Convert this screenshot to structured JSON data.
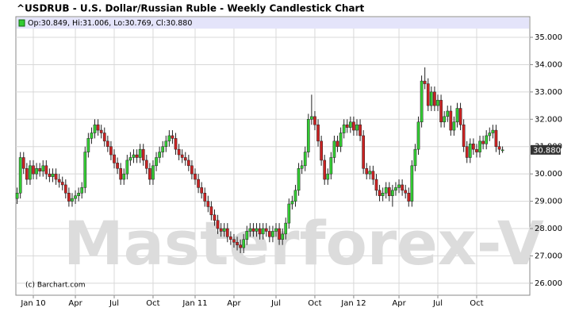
{
  "chart_data": {
    "type": "candlestick",
    "title": "^USDRUB - U.S. Dollar/Russian Ruble - Weekly Candlestick Chart",
    "info": "Op:30.849, Hi:31.006, Lo:30.769, Cl:30.880",
    "last_label": "30.880",
    "watermark": "Masterforex-V",
    "credit": "(c) Barchart.com",
    "up_color": "#33cc33",
    "down_color": "#cc2222",
    "grid": true,
    "ylim": [
      25.56,
      35.32
    ],
    "yticks": [
      {
        "value": 26,
        "label": "26.000"
      },
      {
        "value": 27,
        "label": "27.000"
      },
      {
        "value": 28,
        "label": "28.000"
      },
      {
        "value": 29,
        "label": "29.000"
      },
      {
        "value": 30,
        "label": "30.000"
      },
      {
        "value": 31,
        "label": "31.000"
      },
      {
        "value": 32,
        "label": "32.000"
      },
      {
        "value": 33,
        "label": "33.000"
      },
      {
        "value": 34,
        "label": "34.000"
      },
      {
        "value": 35,
        "label": "35.000"
      }
    ],
    "categories": [
      null,
      null,
      null,
      null,
      null,
      "Jan 10",
      null,
      null,
      null,
      null,
      null,
      null,
      null,
      null,
      null,
      null,
      null,
      null,
      "Apr",
      null,
      null,
      null,
      null,
      null,
      null,
      null,
      null,
      null,
      null,
      null,
      "Jul",
      null,
      null,
      null,
      null,
      null,
      null,
      null,
      null,
      null,
      null,
      null,
      "Oct",
      null,
      null,
      null,
      null,
      null,
      null,
      null,
      null,
      null,
      null,
      null,
      null,
      "Jan 11",
      null,
      null,
      null,
      null,
      null,
      null,
      null,
      null,
      null,
      null,
      null,
      "Apr",
      null,
      null,
      null,
      null,
      null,
      null,
      null,
      null,
      null,
      null,
      null,
      null,
      "Jul",
      null,
      null,
      null,
      null,
      null,
      null,
      null,
      null,
      null,
      null,
      null,
      "Oct",
      null,
      null,
      null,
      null,
      null,
      null,
      null,
      null,
      null,
      null,
      null,
      "Jan 12",
      null,
      null,
      null,
      null,
      null,
      null,
      null,
      null,
      null,
      null,
      null,
      null,
      null,
      "Apr",
      null,
      null,
      null,
      null,
      null,
      null,
      null,
      null,
      null,
      null,
      null,
      "Jul",
      null,
      null,
      null,
      null,
      null,
      null,
      null,
      null,
      null,
      null,
      null,
      "Oct",
      null,
      null,
      null,
      null,
      null,
      null,
      null,
      null
    ],
    "open": [
      29.1,
      29.3,
      30.6,
      30.2,
      29.8,
      30.3,
      30.0,
      30.2,
      30.1,
      30.3,
      30.0,
      29.9,
      30.0,
      29.8,
      29.7,
      29.6,
      29.3,
      29.0,
      29.1,
      29.2,
      29.3,
      29.5,
      30.8,
      31.3,
      31.5,
      31.8,
      31.6,
      31.5,
      31.2,
      31.0,
      30.7,
      30.4,
      30.2,
      29.8,
      30.0,
      30.5,
      30.6,
      30.7,
      30.6,
      30.9,
      30.5,
      30.2,
      29.8,
      30.3,
      30.6,
      30.8,
      31.0,
      31.2,
      31.4,
      31.3,
      30.9,
      30.7,
      30.6,
      30.5,
      30.3,
      30.0,
      29.8,
      29.5,
      29.3,
      29.0,
      28.8,
      28.5,
      28.3,
      28.0,
      27.9,
      28.0,
      27.7,
      27.6,
      27.5,
      27.4,
      27.3,
      27.6,
      27.9,
      28.0,
      27.9,
      28.0,
      27.8,
      28.0,
      27.9,
      27.7,
      27.9,
      28.0,
      27.6,
      27.8,
      28.2,
      28.9,
      29.0,
      29.4,
      30.2,
      30.3,
      30.8,
      32.0,
      32.1,
      31.8,
      31.2,
      30.5,
      29.8,
      30.0,
      30.6,
      31.2,
      31.0,
      31.5,
      31.8,
      31.7,
      31.9,
      31.6,
      31.8,
      31.4,
      30.2,
      30.0,
      30.1,
      29.8,
      29.4,
      29.2,
      29.3,
      29.5,
      29.2,
      29.4,
      29.5,
      29.6,
      29.4,
      29.3,
      29.0,
      30.3,
      30.9,
      31.9,
      33.4,
      33.3,
      32.5,
      33.0,
      32.5,
      32.7,
      31.9,
      32.1,
      32.3,
      31.6,
      31.9,
      32.4,
      31.8,
      31.0,
      30.6,
      31.1,
      30.9,
      30.8,
      31.2,
      31.1,
      31.4,
      31.5,
      31.6,
      31.0,
      30.849
    ],
    "high": [
      29.5,
      30.8,
      30.8,
      30.4,
      30.5,
      30.5,
      30.4,
      30.4,
      30.5,
      30.5,
      30.2,
      30.2,
      30.2,
      30.0,
      29.9,
      29.8,
      29.5,
      29.3,
      29.4,
      29.5,
      29.7,
      31.0,
      31.5,
      31.7,
      32.0,
      32.0,
      31.8,
      31.7,
      31.4,
      31.2,
      30.9,
      30.6,
      30.4,
      30.2,
      30.7,
      30.8,
      30.9,
      30.9,
      31.1,
      31.1,
      30.7,
      30.4,
      30.5,
      30.8,
      31.0,
      31.2,
      31.4,
      31.6,
      31.6,
      31.5,
      31.1,
      30.9,
      30.8,
      30.7,
      30.5,
      30.2,
      30.0,
      29.7,
      29.5,
      29.2,
      29.0,
      28.7,
      28.5,
      28.2,
      28.2,
      28.2,
      27.9,
      27.8,
      27.7,
      27.6,
      27.8,
      28.1,
      28.2,
      28.2,
      28.2,
      28.2,
      28.2,
      28.2,
      28.1,
      28.1,
      28.2,
      28.2,
      28.0,
      28.4,
      29.1,
      29.2,
      29.6,
      30.4,
      30.5,
      31.0,
      32.2,
      32.9,
      32.3,
      32.0,
      31.4,
      30.7,
      30.2,
      30.8,
      31.4,
      31.4,
      31.7,
      32.0,
      32.0,
      32.1,
      32.1,
      32.0,
      32.0,
      31.6,
      30.4,
      30.3,
      30.3,
      30.0,
      29.6,
      29.5,
      29.7,
      29.7,
      29.6,
      29.7,
      29.8,
      29.8,
      29.6,
      29.5,
      30.5,
      31.1,
      32.1,
      33.6,
      33.9,
      33.5,
      33.2,
      33.2,
      32.9,
      32.9,
      32.3,
      32.5,
      32.5,
      32.1,
      32.6,
      32.6,
      32.0,
      31.2,
      31.3,
      31.3,
      31.1,
      31.4,
      31.4,
      31.6,
      31.7,
      31.8,
      31.8,
      31.2,
      31.006
    ],
    "low": [
      28.9,
      29.1,
      30.0,
      29.6,
      29.6,
      29.8,
      29.8,
      29.9,
      29.9,
      29.8,
      29.7,
      29.7,
      29.6,
      29.5,
      29.4,
      29.1,
      28.8,
      28.8,
      28.9,
      29.0,
      29.1,
      29.3,
      30.6,
      31.1,
      31.3,
      31.4,
      31.3,
      31.0,
      30.8,
      30.5,
      30.2,
      30.0,
      29.6,
      29.6,
      29.8,
      30.3,
      30.4,
      30.4,
      30.4,
      30.3,
      30.0,
      29.6,
      29.6,
      30.1,
      30.4,
      30.6,
      30.8,
      31.0,
      31.1,
      30.7,
      30.5,
      30.4,
      30.3,
      30.1,
      29.8,
      29.6,
      29.3,
      29.1,
      28.8,
      28.6,
      28.3,
      28.1,
      27.8,
      27.7,
      27.7,
      27.5,
      27.4,
      27.3,
      27.2,
      27.1,
      27.1,
      27.4,
      27.7,
      27.7,
      27.7,
      27.6,
      27.6,
      27.7,
      27.5,
      27.5,
      27.7,
      27.4,
      27.4,
      27.6,
      28.0,
      28.7,
      28.8,
      29.2,
      30.0,
      30.1,
      30.6,
      31.8,
      31.6,
      31.0,
      30.3,
      29.6,
      29.6,
      29.8,
      30.4,
      30.8,
      30.8,
      31.3,
      31.5,
      31.5,
      31.4,
      31.4,
      31.2,
      30.0,
      29.8,
      29.8,
      29.6,
      29.2,
      29.0,
      29.0,
      29.1,
      29.0,
      28.8,
      29.2,
      29.3,
      29.2,
      29.1,
      28.8,
      28.8,
      30.1,
      30.7,
      31.7,
      33.1,
      32.3,
      32.3,
      32.3,
      32.3,
      31.7,
      31.7,
      31.9,
      31.4,
      31.4,
      31.7,
      31.6,
      30.8,
      30.4,
      30.4,
      30.7,
      30.6,
      30.6,
      30.9,
      30.9,
      31.2,
      31.3,
      30.8,
      30.7,
      30.769
    ],
    "close": [
      29.3,
      30.6,
      30.2,
      29.8,
      30.3,
      30.0,
      30.2,
      30.1,
      30.3,
      30.0,
      29.9,
      30.0,
      29.8,
      29.7,
      29.6,
      29.3,
      29.0,
      29.1,
      29.2,
      29.3,
      29.5,
      30.8,
      31.3,
      31.5,
      31.8,
      31.6,
      31.5,
      31.2,
      31.0,
      30.7,
      30.4,
      30.2,
      29.8,
      30.0,
      30.5,
      30.6,
      30.7,
      30.6,
      30.9,
      30.5,
      30.2,
      29.8,
      30.3,
      30.6,
      30.8,
      31.0,
      31.2,
      31.4,
      31.3,
      30.9,
      30.7,
      30.6,
      30.5,
      30.3,
      30.0,
      29.8,
      29.5,
      29.3,
      29.0,
      28.8,
      28.5,
      28.3,
      28.0,
      27.9,
      28.0,
      27.7,
      27.6,
      27.5,
      27.4,
      27.3,
      27.6,
      27.9,
      28.0,
      27.9,
      28.0,
      27.8,
      28.0,
      27.9,
      27.7,
      27.9,
      28.0,
      27.6,
      27.8,
      28.2,
      28.9,
      29.0,
      29.4,
      30.2,
      30.3,
      30.8,
      32.0,
      32.1,
      31.8,
      31.2,
      30.5,
      29.8,
      30.0,
      30.6,
      31.2,
      31.0,
      31.5,
      31.8,
      31.7,
      31.9,
      31.6,
      31.8,
      31.4,
      30.2,
      30.0,
      30.1,
      29.8,
      29.4,
      29.2,
      29.3,
      29.5,
      29.2,
      29.4,
      29.5,
      29.6,
      29.4,
      29.3,
      29.0,
      30.3,
      30.9,
      31.9,
      33.4,
      33.3,
      32.5,
      33.0,
      32.5,
      32.7,
      31.9,
      32.1,
      32.3,
      31.6,
      31.9,
      32.4,
      31.8,
      31.0,
      30.6,
      31.1,
      30.9,
      30.8,
      31.2,
      31.1,
      31.4,
      31.5,
      31.6,
      31.0,
      30.9,
      30.88
    ]
  }
}
